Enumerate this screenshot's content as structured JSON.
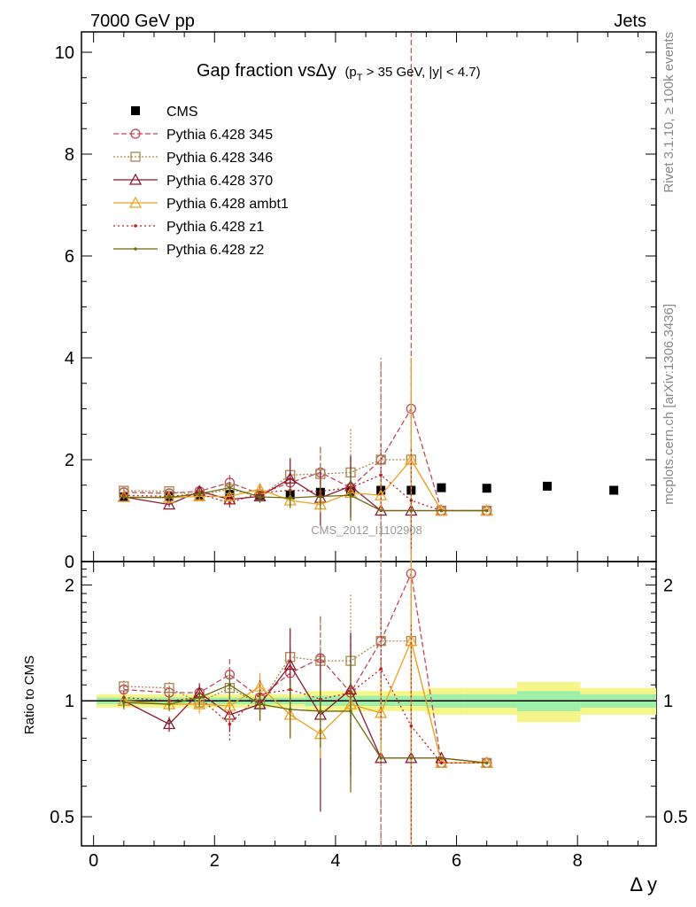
{
  "header": {
    "left": "7000 GeV pp",
    "right": "Jets"
  },
  "side_labels": {
    "rivet": "Rivet 3.1.10, ≥ 100k events",
    "source": "mcplots.cern.ch [arXiv:1306.3436]"
  },
  "watermark": "CMS_2012_I1102908",
  "title": {
    "main": "Gap fraction vsΔy",
    "sub_prefix": "(p",
    "sub_subscript": "T",
    "sub_suffix": " > 35 GeV, |y| < 4.7)"
  },
  "chart_data": [
    {
      "type": "line",
      "panel": "main",
      "ylim": [
        0,
        10.4
      ],
      "xlim": [
        -0.2,
        9.3
      ],
      "yticks": [
        "0",
        "2",
        "4",
        "6",
        "8",
        "10"
      ],
      "xlabel": "",
      "ylabel": "",
      "legend_position": "top-left",
      "series": [
        {
          "name": "CMS",
          "color": "#000000",
          "style": "data",
          "x": [
            0.5,
            1.25,
            1.75,
            2.25,
            2.75,
            3.25,
            3.75,
            4.25,
            4.75,
            5.25,
            5.75,
            6.5,
            7.5,
            8.6
          ],
          "y": [
            1.27,
            1.28,
            1.31,
            1.32,
            1.3,
            1.31,
            1.36,
            1.38,
            1.4,
            1.4,
            1.45,
            1.44,
            1.48,
            1.4
          ]
        },
        {
          "name": "Pythia 6.428 345",
          "color": "#c0485a",
          "marker": "circle",
          "dash": "6,3",
          "x": [
            0.5,
            1.25,
            1.75,
            2.25,
            2.75,
            3.25,
            3.75,
            4.25,
            4.75,
            5.25,
            5.75,
            6.5
          ],
          "y": [
            1.36,
            1.34,
            1.38,
            1.55,
            1.33,
            1.55,
            1.75,
            1.45,
            2.0,
            3.0,
            1.0,
            1.0
          ],
          "err": [
            0.05,
            0.05,
            0.06,
            0.15,
            0.12,
            0.25,
            0.5,
            0.6,
            1.9,
            9.5,
            0.0,
            0.0
          ]
        },
        {
          "name": "Pythia 6.428 346",
          "color": "#a8864e",
          "marker": "square",
          "dash": "2,2",
          "x": [
            0.5,
            1.25,
            1.75,
            2.25,
            2.75,
            3.25,
            3.75,
            4.25,
            4.75,
            5.25,
            5.75,
            6.5
          ],
          "y": [
            1.39,
            1.38,
            1.3,
            1.42,
            1.28,
            1.7,
            1.72,
            1.75,
            2.0,
            2.0,
            1.0,
            1.0
          ],
          "err": [
            0.05,
            0.05,
            0.07,
            0.12,
            0.12,
            0.3,
            0.5,
            0.85,
            2.0,
            2.0,
            0.0,
            0.0
          ]
        },
        {
          "name": "Pythia 6.428 370",
          "color": "#8b1a2e",
          "marker": "triangle",
          "dash": "",
          "x": [
            0.5,
            1.25,
            1.75,
            2.25,
            2.75,
            3.25,
            3.75,
            4.25,
            4.75,
            5.25,
            5.75,
            6.5
          ],
          "y": [
            1.27,
            1.12,
            1.38,
            1.22,
            1.28,
            1.63,
            1.25,
            1.48,
            1.0,
            1.0,
            1.0,
            1.0
          ],
          "err": [
            0.05,
            0.05,
            0.08,
            0.12,
            0.12,
            0.4,
            0.55,
            0.6,
            0.0,
            0.0,
            0.0,
            0.0
          ]
        },
        {
          "name": "Pythia 6.428 ambt1",
          "color": "#f0a020",
          "marker": "triangle",
          "dash": "",
          "x": [
            0.5,
            1.25,
            1.75,
            2.25,
            2.75,
            3.25,
            3.75,
            4.25,
            4.75,
            5.25,
            5.75,
            6.5
          ],
          "y": [
            1.27,
            1.25,
            1.28,
            1.28,
            1.42,
            1.2,
            1.12,
            1.35,
            1.3,
            2.0,
            1.0,
            1.0
          ],
          "err": [
            0.05,
            0.05,
            0.07,
            0.12,
            0.12,
            0.15,
            0.15,
            0.25,
            0.3,
            2.0,
            0.0,
            0.0
          ]
        },
        {
          "name": "Pythia 6.428 z1",
          "color": "#c02020",
          "marker": "dot",
          "dash": "2,3",
          "x": [
            0.5,
            1.25,
            1.75,
            2.25,
            2.75,
            3.25,
            3.75,
            4.25,
            4.75,
            5.25,
            5.75,
            6.5
          ],
          "y": [
            1.3,
            1.28,
            1.33,
            1.15,
            1.35,
            1.4,
            1.38,
            1.45,
            1.7,
            1.2,
            1.0,
            1.0
          ],
          "err": [
            0.05,
            0.05,
            0.07,
            0.12,
            0.12,
            0.2,
            0.3,
            0.5,
            0.6,
            1.0,
            0.0,
            0.0
          ]
        },
        {
          "name": "Pythia 6.428 z2",
          "color": "#6b6b10",
          "marker": "dot",
          "dash": "",
          "x": [
            0.5,
            1.25,
            1.75,
            2.25,
            2.75,
            3.25,
            3.75,
            4.25,
            4.75,
            5.25,
            5.75,
            6.5
          ],
          "y": [
            1.26,
            1.26,
            1.33,
            1.45,
            1.27,
            1.25,
            1.28,
            1.3,
            1.0,
            1.0,
            1.0,
            1.0
          ],
          "err": [
            0.05,
            0.05,
            0.07,
            0.12,
            0.12,
            0.2,
            0.25,
            0.5,
            0.0,
            0.0,
            0.0,
            0.0
          ]
        }
      ]
    },
    {
      "type": "line",
      "panel": "ratio",
      "ylim": [
        0.42,
        2.3
      ],
      "yscale": "log",
      "xlim": [
        -0.2,
        9.3
      ],
      "yticks": [
        "0.5",
        "1",
        "2"
      ],
      "xticks": [
        "0",
        "2",
        "4",
        "6",
        "8"
      ],
      "xlabel": "Δ y",
      "ylabel": "Ratio to CMS",
      "band": {
        "x": [
          0.5,
          1.25,
          1.75,
          2.25,
          2.75,
          3.25,
          3.75,
          4.25,
          4.75,
          5.25,
          5.75,
          6.5,
          7.5,
          8.6
        ],
        "halfwidth": [
          0.02,
          0.02,
          0.02,
          0.02,
          0.02,
          0.02,
          0.03,
          0.03,
          0.03,
          0.03,
          0.04,
          0.04,
          0.06,
          0.04
        ]
      },
      "series": [
        {
          "name": "Pythia 6.428 345",
          "y": [
            1.07,
            1.05,
            1.05,
            1.17,
            1.02,
            1.18,
            1.29,
            1.05,
            1.43,
            2.14,
            0.69,
            0.69
          ]
        },
        {
          "name": "Pythia 6.428 346",
          "y": [
            1.09,
            1.08,
            0.99,
            1.08,
            0.98,
            1.3,
            1.27,
            1.27,
            1.43,
            1.43,
            0.69,
            0.69
          ]
        },
        {
          "name": "Pythia 6.428 370",
          "y": [
            1.0,
            0.87,
            1.05,
            0.92,
            0.98,
            1.24,
            0.92,
            1.07,
            0.71,
            0.71,
            0.71,
            0.69
          ]
        },
        {
          "name": "Pythia 6.428 ambt1",
          "y": [
            1.0,
            0.98,
            0.98,
            0.97,
            1.09,
            0.92,
            0.82,
            0.98,
            0.93,
            1.43,
            0.69,
            0.69
          ]
        },
        {
          "name": "Pythia 6.428 z1",
          "y": [
            1.02,
            1.0,
            1.02,
            0.87,
            1.04,
            1.07,
            1.01,
            1.05,
            1.21,
            0.86,
            0.69,
            0.69
          ]
        },
        {
          "name": "Pythia 6.428 z2",
          "y": [
            0.99,
            0.98,
            1.02,
            1.1,
            0.98,
            0.95,
            0.94,
            0.94,
            0.71,
            0.71,
            0.71,
            0.69
          ]
        }
      ]
    }
  ]
}
